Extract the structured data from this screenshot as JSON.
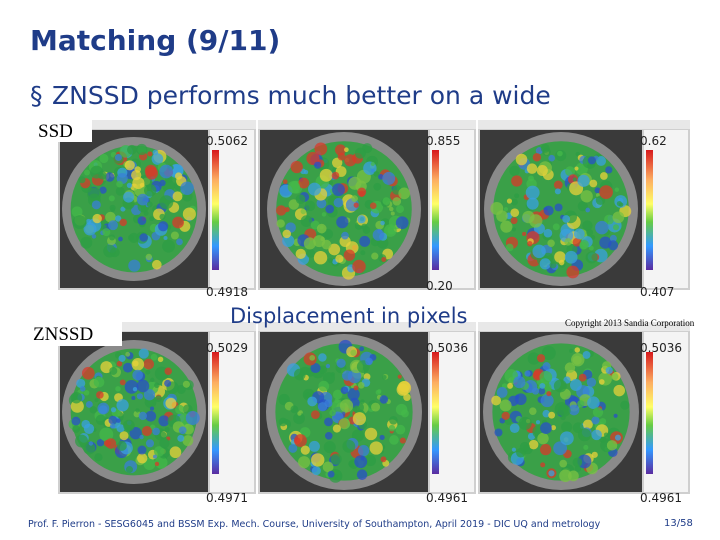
{
  "title": "Matching (9/11)",
  "bullet": "ZNSSD performs much better on a wide",
  "rows": [
    {
      "label": "SSD",
      "panels": [
        {
          "max": "0.5062",
          "min": "0.4918"
        },
        {
          "max": "0.855",
          "min": "0.20"
        },
        {
          "max": "0.62",
          "min": "0.407"
        }
      ]
    },
    {
      "label": "ZNSSD",
      "panels": [
        {
          "max": "0.5029",
          "min": "0.4971"
        },
        {
          "max": "0.5036",
          "min": "0.4961"
        },
        {
          "max": "0.5036",
          "min": "0.4961"
        }
      ]
    }
  ],
  "caption": "Displacement in pixels",
  "copyright": "Copyright 2013 Sandia Corporation",
  "footer": "Prof. F. Pierron - SESG6045 and BSSM Exp. Mech. Course, University of Southampton, April 2019 - DIC UQ and metrology",
  "page": "13/58"
}
